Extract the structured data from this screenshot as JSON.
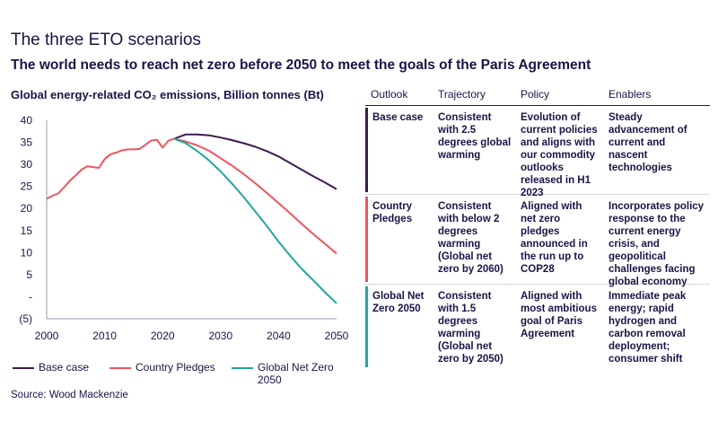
{
  "title": "The three ETO scenarios",
  "subtitle": "The world needs to reach net zero before 2050 to meet the goals of the Paris Agreement",
  "source": "Source: Wood Mackenzie",
  "colors": {
    "base": "#3d1a4d",
    "pledges": "#f0545e",
    "netzero": "#1ea89a",
    "text": "#1a1446",
    "axis": "#9a9aaa"
  },
  "chart_data": {
    "type": "line",
    "title": "Global energy-related CO₂ emissions, Billion tonnes (Bt)",
    "xlabel": "",
    "ylabel": "",
    "xlim": [
      2000,
      2050
    ],
    "ylim": [
      -5,
      40
    ],
    "x_ticks": [
      2000,
      2010,
      2020,
      2030,
      2040,
      2050
    ],
    "x_tick_labels": [
      "2000",
      "2010",
      "2020",
      "2030",
      "2040",
      "2050"
    ],
    "y_ticks": [
      40,
      35,
      30,
      25,
      20,
      15,
      10,
      5,
      0,
      -5
    ],
    "y_tick_labels": [
      "40",
      "35",
      "30",
      "25",
      "20",
      "15",
      "10",
      "5",
      "-",
      "(5)"
    ],
    "grid": false,
    "legend": "bottom",
    "historical": {
      "x": [
        2000,
        2001,
        2002,
        2003,
        2004,
        2005,
        2006,
        2007,
        2008,
        2009,
        2010,
        2011,
        2012,
        2013,
        2014,
        2015,
        2016,
        2017,
        2018,
        2019,
        2020,
        2021,
        2022
      ],
      "y": [
        22.2,
        22.9,
        23.4,
        24.8,
        26.3,
        27.5,
        28.8,
        29.6,
        29.4,
        29.2,
        31.2,
        32.3,
        32.7,
        33.2,
        33.4,
        33.4,
        33.5,
        34.4,
        35.4,
        35.6,
        33.8,
        35.4,
        35.8
      ]
    },
    "series": [
      {
        "name": "Base case",
        "color": "#3d1a4d",
        "x": [
          2022,
          2024,
          2026,
          2028,
          2030,
          2032,
          2034,
          2036,
          2038,
          2040,
          2042,
          2044,
          2046,
          2048,
          2050
        ],
        "y": [
          35.8,
          36.8,
          36.8,
          36.6,
          36.1,
          35.5,
          34.8,
          34.0,
          33.0,
          31.8,
          30.3,
          28.8,
          27.3,
          25.9,
          24.4
        ]
      },
      {
        "name": "Country Pledges",
        "color": "#f0545e",
        "x": [
          2022,
          2024,
          2026,
          2028,
          2030,
          2032,
          2034,
          2036,
          2038,
          2040,
          2042,
          2044,
          2046,
          2048,
          2050
        ],
        "y": [
          35.8,
          35.2,
          34.3,
          33.1,
          31.4,
          29.7,
          27.8,
          25.7,
          23.5,
          21.2,
          18.9,
          16.5,
          14.2,
          12.0,
          9.8
        ]
      },
      {
        "name": "Global Net Zero 2050",
        "color": "#1ea89a",
        "x": [
          2022,
          2024,
          2026,
          2028,
          2030,
          2032,
          2034,
          2036,
          2038,
          2040,
          2042,
          2044,
          2046,
          2048,
          2050
        ],
        "y": [
          35.8,
          34.8,
          33.0,
          30.9,
          28.4,
          25.6,
          22.6,
          19.3,
          16.0,
          12.5,
          9.3,
          6.3,
          3.7,
          1.0,
          -1.5
        ]
      }
    ]
  },
  "legend_items": [
    "Base case",
    "Country Pledges",
    "Global Net Zero 2050"
  ],
  "table": {
    "headers": [
      "Outlook",
      "Trajectory",
      "Policy",
      "Enablers"
    ],
    "rows": [
      {
        "outlook": "Base case",
        "trajectory": "Consistent with 2.5 degrees global warming",
        "policy": "Evolution of current policies and aligns with our commodity outlooks released in H1 2023",
        "enablers": "Steady advancement of current and nascent technologies",
        "color": "#3d1a4d"
      },
      {
        "outlook": "Country Pledges",
        "trajectory": "Consistent with below 2 degrees warming (Global net zero by 2060)",
        "policy": "Aligned with net zero pledges announced in the run up to COP28",
        "enablers": "Incorporates policy response to the current energy crisis, and geopolitical challenges facing global economy",
        "color": "#f0545e"
      },
      {
        "outlook": "Global Net Zero 2050",
        "trajectory": "Consistent with 1.5 degrees warming (Global net zero by 2050)",
        "policy": "Aligned with most ambitious goal of Paris Agreement",
        "enablers": "Immediate peak energy; rapid hydrogen and carbon removal deployment; consumer shift",
        "color": "#1ea89a"
      }
    ]
  }
}
